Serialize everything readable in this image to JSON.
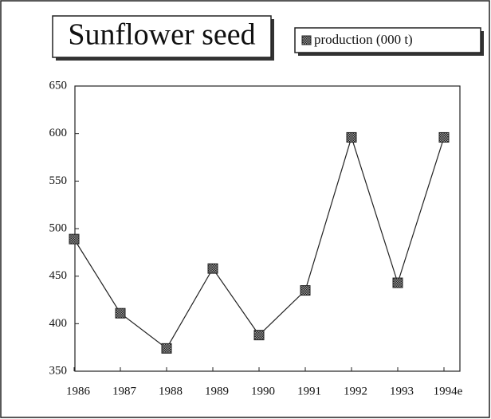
{
  "chart_data": {
    "type": "line",
    "title": "Sunflower seed",
    "categories": [
      "1986",
      "1987",
      "1988",
      "1989",
      "1990",
      "1991",
      "1992",
      "1993",
      "1994e"
    ],
    "series": [
      {
        "name": "production (000 t)",
        "color": "#222222",
        "values": [
          489,
          411,
          374,
          458,
          388,
          435,
          596,
          443,
          596
        ]
      }
    ],
    "ylim": [
      350,
      650
    ],
    "yticks": [
      350,
      400,
      450,
      500,
      550,
      600,
      650
    ],
    "grid": false
  }
}
